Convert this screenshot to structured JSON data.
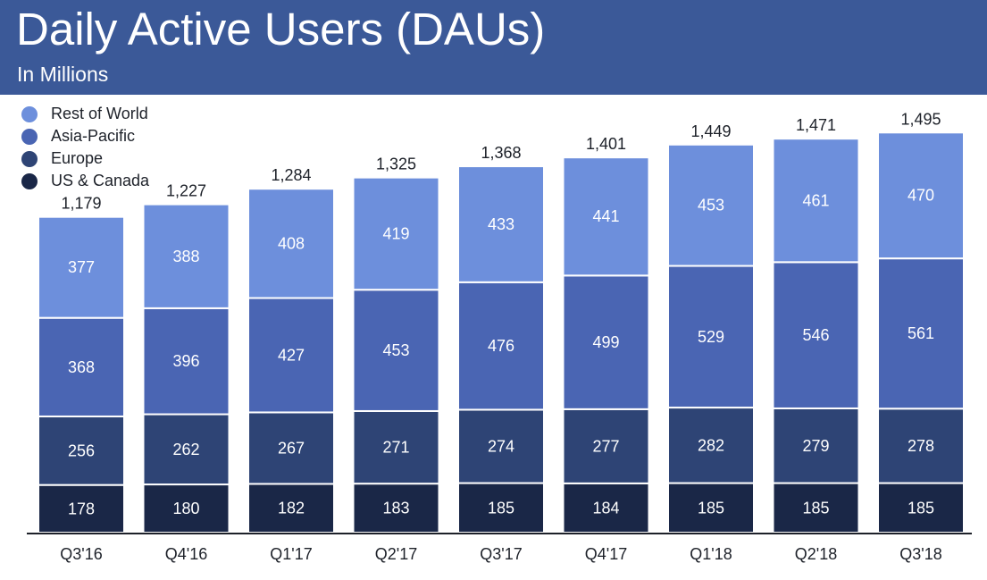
{
  "header": {
    "title": "Daily Active Users (DAUs)",
    "subtitle": "In Millions"
  },
  "colors": {
    "header_bg": "#3b5998",
    "rest_of_world": "#6d8fdc",
    "asia_pacific": "#4a65b3",
    "europe": "#2e4475",
    "us_canada": "#1a2747"
  },
  "chart_data": {
    "type": "bar",
    "stacked": true,
    "title": "Daily Active Users (DAUs)",
    "subtitle": "In Millions",
    "categories": [
      "Q3'16",
      "Q4'16",
      "Q1'17",
      "Q2'17",
      "Q3'17",
      "Q4'17",
      "Q1'18",
      "Q2'18",
      "Q3'18"
    ],
    "series": [
      {
        "name": "US & Canada",
        "color": "#1a2747",
        "values": [
          178,
          180,
          182,
          183,
          185,
          184,
          185,
          185,
          185
        ]
      },
      {
        "name": "Europe",
        "color": "#2e4475",
        "values": [
          256,
          262,
          267,
          271,
          274,
          277,
          282,
          279,
          278
        ]
      },
      {
        "name": "Asia-Pacific",
        "color": "#4a65b3",
        "values": [
          368,
          396,
          427,
          453,
          476,
          499,
          529,
          546,
          561
        ]
      },
      {
        "name": "Rest of World",
        "color": "#6d8fdc",
        "values": [
          377,
          388,
          408,
          419,
          433,
          441,
          453,
          461,
          470
        ]
      }
    ],
    "totals": [
      "1,179",
      "1,227",
      "1,284",
      "1,325",
      "1,368",
      "1,401",
      "1,449",
      "1,471",
      "1,495"
    ],
    "legend": {
      "placement": "top-left",
      "order": [
        "Rest of World",
        "Asia-Pacific",
        "Europe",
        "US & Canada"
      ]
    },
    "ylim": [
      0,
      1495
    ],
    "grid": false
  }
}
